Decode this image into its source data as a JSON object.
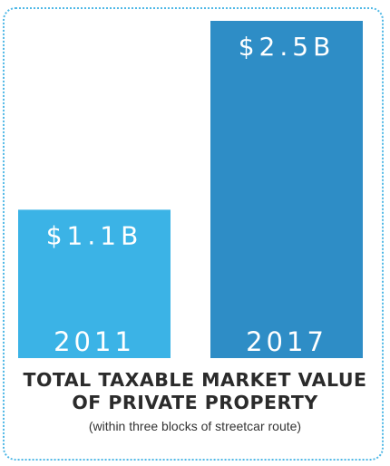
{
  "chart_data": {
    "type": "bar",
    "categories": [
      "2011",
      "2017"
    ],
    "values": [
      1.1,
      2.5
    ],
    "value_labels": [
      "$1.1B",
      "$2.5B"
    ],
    "title_lines": [
      "TOTAL TAXABLE MARKET VALUE",
      "OF PRIVATE PROPERTY"
    ],
    "subtitle": "(within three blocks of streetcar route)",
    "colors": [
      "#3bb3e6",
      "#2e8dc6"
    ],
    "ylim": [
      0,
      2.5
    ],
    "grid": false,
    "legend": "none"
  },
  "theme": {
    "border_color": "#4fb8e6"
  }
}
